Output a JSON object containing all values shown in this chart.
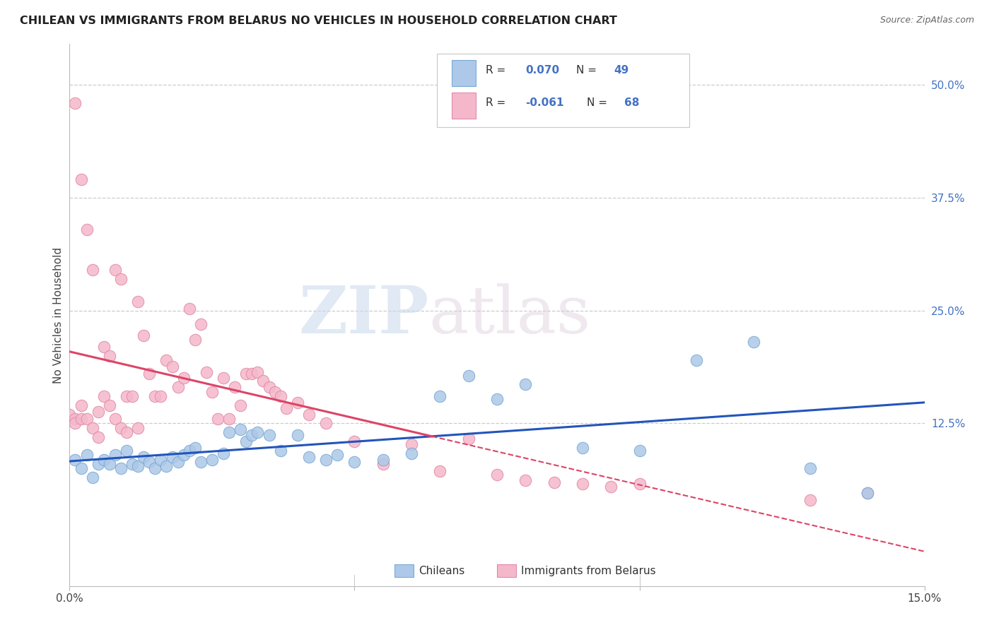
{
  "title": "CHILEAN VS IMMIGRANTS FROM BELARUS NO VEHICLES IN HOUSEHOLD CORRELATION CHART",
  "source": "Source: ZipAtlas.com",
  "ylabel": "No Vehicles in Household",
  "ytick_labels": [
    "12.5%",
    "25.0%",
    "37.5%",
    "50.0%"
  ],
  "ytick_values": [
    0.125,
    0.25,
    0.375,
    0.5
  ],
  "xmin": 0.0,
  "xmax": 0.15,
  "ymin": -0.055,
  "ymax": 0.545,
  "blue_R": 0.07,
  "blue_N": 49,
  "pink_R": -0.061,
  "pink_N": 68,
  "blue_color": "#adc8e8",
  "blue_edge": "#7aaad4",
  "pink_color": "#f5b8cb",
  "pink_edge": "#e08aa8",
  "blue_line_color": "#2255bb",
  "pink_line_color": "#dd4466",
  "legend_label_blue": "Chileans",
  "legend_label_pink": "Immigrants from Belarus",
  "watermark_zip": "ZIP",
  "watermark_atlas": "atlas",
  "grid_color": "#cccccc",
  "background_color": "#ffffff",
  "blue_x": [
    0.001,
    0.002,
    0.003,
    0.004,
    0.005,
    0.006,
    0.007,
    0.008,
    0.009,
    0.01,
    0.011,
    0.012,
    0.013,
    0.014,
    0.015,
    0.016,
    0.017,
    0.018,
    0.019,
    0.02,
    0.021,
    0.022,
    0.023,
    0.025,
    0.027,
    0.028,
    0.03,
    0.031,
    0.032,
    0.033,
    0.035,
    0.037,
    0.04,
    0.042,
    0.045,
    0.047,
    0.05,
    0.055,
    0.06,
    0.065,
    0.07,
    0.075,
    0.08,
    0.09,
    0.1,
    0.11,
    0.12,
    0.13,
    0.14
  ],
  "blue_y": [
    0.085,
    0.075,
    0.09,
    0.065,
    0.08,
    0.085,
    0.08,
    0.09,
    0.075,
    0.095,
    0.08,
    0.078,
    0.088,
    0.082,
    0.075,
    0.085,
    0.078,
    0.088,
    0.082,
    0.09,
    0.095,
    0.098,
    0.082,
    0.085,
    0.092,
    0.115,
    0.118,
    0.105,
    0.112,
    0.115,
    0.112,
    0.095,
    0.112,
    0.088,
    0.085,
    0.09,
    0.082,
    0.085,
    0.092,
    0.155,
    0.178,
    0.152,
    0.168,
    0.098,
    0.095,
    0.195,
    0.215,
    0.075,
    0.048
  ],
  "pink_x": [
    0.0,
    0.001,
    0.001,
    0.001,
    0.002,
    0.002,
    0.002,
    0.003,
    0.003,
    0.004,
    0.004,
    0.005,
    0.005,
    0.006,
    0.006,
    0.007,
    0.007,
    0.008,
    0.008,
    0.009,
    0.009,
    0.01,
    0.01,
    0.011,
    0.012,
    0.012,
    0.013,
    0.014,
    0.015,
    0.016,
    0.017,
    0.018,
    0.019,
    0.02,
    0.021,
    0.022,
    0.023,
    0.024,
    0.025,
    0.026,
    0.027,
    0.028,
    0.029,
    0.03,
    0.031,
    0.032,
    0.033,
    0.034,
    0.035,
    0.036,
    0.037,
    0.038,
    0.04,
    0.042,
    0.045,
    0.05,
    0.055,
    0.06,
    0.065,
    0.07,
    0.075,
    0.08,
    0.085,
    0.09,
    0.095,
    0.1,
    0.13,
    0.14
  ],
  "pink_y": [
    0.135,
    0.48,
    0.13,
    0.125,
    0.395,
    0.145,
    0.13,
    0.34,
    0.13,
    0.295,
    0.12,
    0.11,
    0.138,
    0.21,
    0.155,
    0.2,
    0.145,
    0.295,
    0.13,
    0.285,
    0.12,
    0.155,
    0.115,
    0.155,
    0.26,
    0.12,
    0.222,
    0.18,
    0.155,
    0.155,
    0.195,
    0.188,
    0.165,
    0.175,
    0.252,
    0.218,
    0.235,
    0.182,
    0.16,
    0.13,
    0.175,
    0.13,
    0.165,
    0.145,
    0.18,
    0.18,
    0.182,
    0.172,
    0.165,
    0.16,
    0.155,
    0.142,
    0.148,
    0.135,
    0.125,
    0.105,
    0.08,
    0.102,
    0.072,
    0.108,
    0.068,
    0.062,
    0.06,
    0.058,
    0.055,
    0.058,
    0.04,
    0.048
  ]
}
